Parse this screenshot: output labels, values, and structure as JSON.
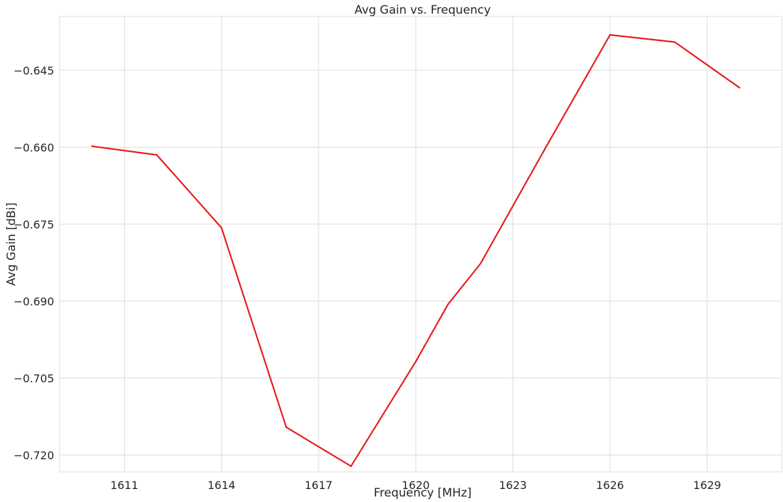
{
  "chart_data": {
    "type": "line",
    "title": "Avg Gain vs. Frequency",
    "xlabel": "Frequency [MHz]",
    "ylabel": "Avg Gain [dBi]",
    "xlim": [
      1609.0,
      1631.3
    ],
    "ylim": [
      -0.7233,
      -0.6345
    ],
    "xticks": [
      1611,
      1614,
      1617,
      1620,
      1623,
      1626,
      1629
    ],
    "xtick_labels": [
      "1611",
      "1614",
      "1617",
      "1620",
      "1623",
      "1626",
      "1629"
    ],
    "yticks": [
      -0.645,
      -0.66,
      -0.675,
      -0.69,
      -0.705,
      -0.72
    ],
    "ytick_labels": [
      "−0.645",
      "−0.660",
      "−0.675",
      "−0.690",
      "−0.705",
      "−0.720"
    ],
    "grid": true,
    "series": [
      {
        "color": "#e8191a",
        "x": [
          1610,
          1612,
          1614,
          1616,
          1618,
          1620,
          1621,
          1622,
          1624,
          1626,
          1628,
          1630
        ],
        "y": [
          -0.6598,
          -0.6615,
          -0.6757,
          -0.7146,
          -0.7222,
          -0.7018,
          -0.6906,
          -0.6827,
          -0.6602,
          -0.6381,
          -0.6395,
          -0.6484
        ]
      }
    ]
  }
}
